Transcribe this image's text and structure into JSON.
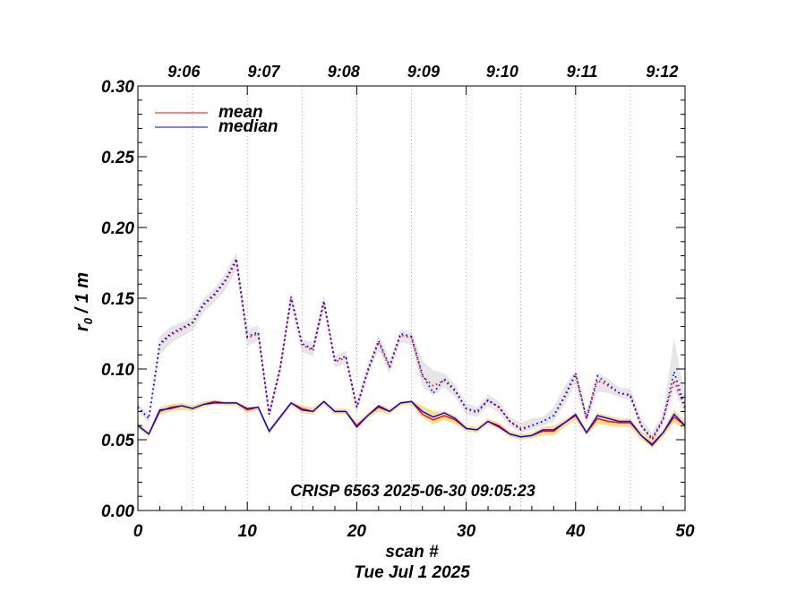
{
  "chart_data": {
    "type": "line",
    "title": "",
    "annotation": "CRISP 6563 2025-06-30 09:05:23",
    "xlabel": "scan #",
    "xlabel2": "Tue Jul  1 2025",
    "ylabel_main": "r",
    "ylabel_sub": "0",
    "ylabel_rest": " / 1 m",
    "xlim": [
      0,
      50
    ],
    "ylim": [
      0,
      0.3
    ],
    "xticks": [
      0,
      10,
      20,
      30,
      40,
      50
    ],
    "xtick_labels": [
      "0",
      "10",
      "20",
      "30",
      "40",
      "50"
    ],
    "yticks": [
      0.0,
      0.05,
      0.1,
      0.15,
      0.2,
      0.25,
      0.3
    ],
    "ytick_labels": [
      "0.00",
      "0.05",
      "0.10",
      "0.15",
      "0.20",
      "0.25",
      "0.30"
    ],
    "top_axis": {
      "labels": [
        "9:06",
        "9:07",
        "9:08",
        "9:09",
        "9:10",
        "9:11",
        "9:12"
      ],
      "positions": [
        4.2,
        11.5,
        18.8,
        26.1,
        33.3,
        40.6,
        47.9
      ]
    },
    "minute_gridlines": [
      5,
      10,
      15,
      20,
      25,
      30,
      35,
      40,
      45
    ],
    "legend": {
      "placement": "top-left",
      "entries": [
        {
          "label": "mean",
          "color": "#ff0000"
        },
        {
          "label": "median",
          "color": "#0000ff"
        }
      ]
    },
    "x": [
      0,
      1,
      2,
      3,
      4,
      5,
      6,
      7,
      8,
      9,
      10,
      11,
      12,
      13,
      14,
      15,
      16,
      17,
      18,
      19,
      20,
      21,
      22,
      23,
      24,
      25,
      26,
      27,
      28,
      29,
      30,
      31,
      32,
      33,
      34,
      35,
      36,
      37,
      38,
      39,
      40,
      41,
      42,
      43,
      44,
      45,
      46,
      47,
      48,
      49,
      50
    ],
    "series": [
      {
        "name": "mean (upper)",
        "color": "#ff0000",
        "style": "dotted",
        "values": [
          0.073,
          0.065,
          0.117,
          0.124,
          0.128,
          0.132,
          0.145,
          0.152,
          0.162,
          0.176,
          0.122,
          0.125,
          0.068,
          0.1,
          0.15,
          0.117,
          0.113,
          0.147,
          0.105,
          0.108,
          0.073,
          0.098,
          0.119,
          0.101,
          0.124,
          0.122,
          0.095,
          0.088,
          0.092,
          0.084,
          0.072,
          0.069,
          0.078,
          0.073,
          0.063,
          0.058,
          0.06,
          0.063,
          0.067,
          0.08,
          0.096,
          0.065,
          0.092,
          0.088,
          0.083,
          0.082,
          0.06,
          0.051,
          0.065,
          0.092,
          0.072
        ]
      },
      {
        "name": "median (upper)",
        "color": "#0000ff",
        "style": "dotted",
        "values": [
          0.073,
          0.065,
          0.118,
          0.125,
          0.129,
          0.133,
          0.146,
          0.153,
          0.163,
          0.178,
          0.123,
          0.126,
          0.068,
          0.101,
          0.151,
          0.118,
          0.114,
          0.148,
          0.106,
          0.109,
          0.073,
          0.099,
          0.12,
          0.102,
          0.125,
          0.123,
          0.096,
          0.083,
          0.093,
          0.085,
          0.072,
          0.07,
          0.078,
          0.073,
          0.063,
          0.057,
          0.06,
          0.063,
          0.067,
          0.081,
          0.097,
          0.065,
          0.095,
          0.089,
          0.083,
          0.081,
          0.06,
          0.05,
          0.064,
          0.098,
          0.073
        ]
      },
      {
        "name": "mean (lower)",
        "color": "#ff0000",
        "style": "solid",
        "values": [
          0.06,
          0.054,
          0.07,
          0.073,
          0.074,
          0.072,
          0.075,
          0.077,
          0.076,
          0.076,
          0.071,
          0.073,
          0.056,
          0.066,
          0.076,
          0.072,
          0.07,
          0.077,
          0.07,
          0.07,
          0.06,
          0.067,
          0.073,
          0.07,
          0.076,
          0.077,
          0.068,
          0.064,
          0.067,
          0.064,
          0.058,
          0.057,
          0.063,
          0.06,
          0.054,
          0.052,
          0.053,
          0.056,
          0.056,
          0.062,
          0.067,
          0.055,
          0.065,
          0.063,
          0.062,
          0.062,
          0.053,
          0.047,
          0.055,
          0.066,
          0.06
        ]
      },
      {
        "name": "median (lower)",
        "color": "#0000ff",
        "style": "solid",
        "values": [
          0.06,
          0.054,
          0.071,
          0.072,
          0.074,
          0.072,
          0.075,
          0.076,
          0.076,
          0.076,
          0.072,
          0.073,
          0.056,
          0.066,
          0.076,
          0.071,
          0.07,
          0.077,
          0.07,
          0.07,
          0.059,
          0.067,
          0.074,
          0.07,
          0.076,
          0.077,
          0.07,
          0.066,
          0.069,
          0.065,
          0.058,
          0.057,
          0.063,
          0.059,
          0.054,
          0.052,
          0.053,
          0.057,
          0.057,
          0.062,
          0.068,
          0.055,
          0.067,
          0.065,
          0.063,
          0.063,
          0.053,
          0.046,
          0.055,
          0.068,
          0.06
        ]
      }
    ],
    "bands": [
      {
        "name": "upper spread",
        "color": "#e6e6e6",
        "upper": [
          0.076,
          0.068,
          0.123,
          0.13,
          0.133,
          0.137,
          0.15,
          0.157,
          0.168,
          0.182,
          0.128,
          0.131,
          0.072,
          0.105,
          0.155,
          0.121,
          0.119,
          0.152,
          0.109,
          0.113,
          0.078,
          0.103,
          0.124,
          0.106,
          0.128,
          0.126,
          0.106,
          0.099,
          0.097,
          0.089,
          0.076,
          0.073,
          0.082,
          0.077,
          0.066,
          0.062,
          0.065,
          0.066,
          0.073,
          0.088,
          0.099,
          0.069,
          0.097,
          0.093,
          0.087,
          0.086,
          0.065,
          0.055,
          0.069,
          0.122,
          0.08
        ],
        "lower": [
          0.07,
          0.062,
          0.11,
          0.118,
          0.123,
          0.127,
          0.14,
          0.147,
          0.156,
          0.17,
          0.116,
          0.12,
          0.064,
          0.096,
          0.144,
          0.112,
          0.109,
          0.142,
          0.101,
          0.104,
          0.069,
          0.094,
          0.114,
          0.097,
          0.119,
          0.117,
          0.088,
          0.081,
          0.087,
          0.08,
          0.068,
          0.066,
          0.074,
          0.069,
          0.06,
          0.055,
          0.057,
          0.06,
          0.063,
          0.075,
          0.09,
          0.062,
          0.084,
          0.083,
          0.08,
          0.078,
          0.057,
          0.047,
          0.061,
          0.086,
          0.068
        ]
      },
      {
        "name": "lower spread",
        "color": "#f7e08a",
        "upper": [
          0.062,
          0.056,
          0.073,
          0.075,
          0.076,
          0.074,
          0.077,
          0.078,
          0.077,
          0.077,
          0.073,
          0.074,
          0.058,
          0.068,
          0.077,
          0.074,
          0.073,
          0.078,
          0.072,
          0.072,
          0.062,
          0.069,
          0.075,
          0.072,
          0.077,
          0.078,
          0.074,
          0.07,
          0.07,
          0.067,
          0.06,
          0.059,
          0.065,
          0.062,
          0.056,
          0.054,
          0.055,
          0.059,
          0.06,
          0.064,
          0.069,
          0.057,
          0.069,
          0.067,
          0.065,
          0.065,
          0.056,
          0.05,
          0.057,
          0.071,
          0.063
        ],
        "lower": [
          0.058,
          0.052,
          0.068,
          0.07,
          0.071,
          0.07,
          0.073,
          0.075,
          0.074,
          0.074,
          0.069,
          0.071,
          0.054,
          0.064,
          0.074,
          0.069,
          0.068,
          0.075,
          0.068,
          0.068,
          0.057,
          0.065,
          0.07,
          0.068,
          0.074,
          0.075,
          0.066,
          0.061,
          0.064,
          0.061,
          0.056,
          0.055,
          0.061,
          0.057,
          0.052,
          0.05,
          0.051,
          0.053,
          0.053,
          0.059,
          0.064,
          0.053,
          0.061,
          0.06,
          0.059,
          0.059,
          0.05,
          0.044,
          0.052,
          0.062,
          0.057
        ]
      }
    ]
  }
}
